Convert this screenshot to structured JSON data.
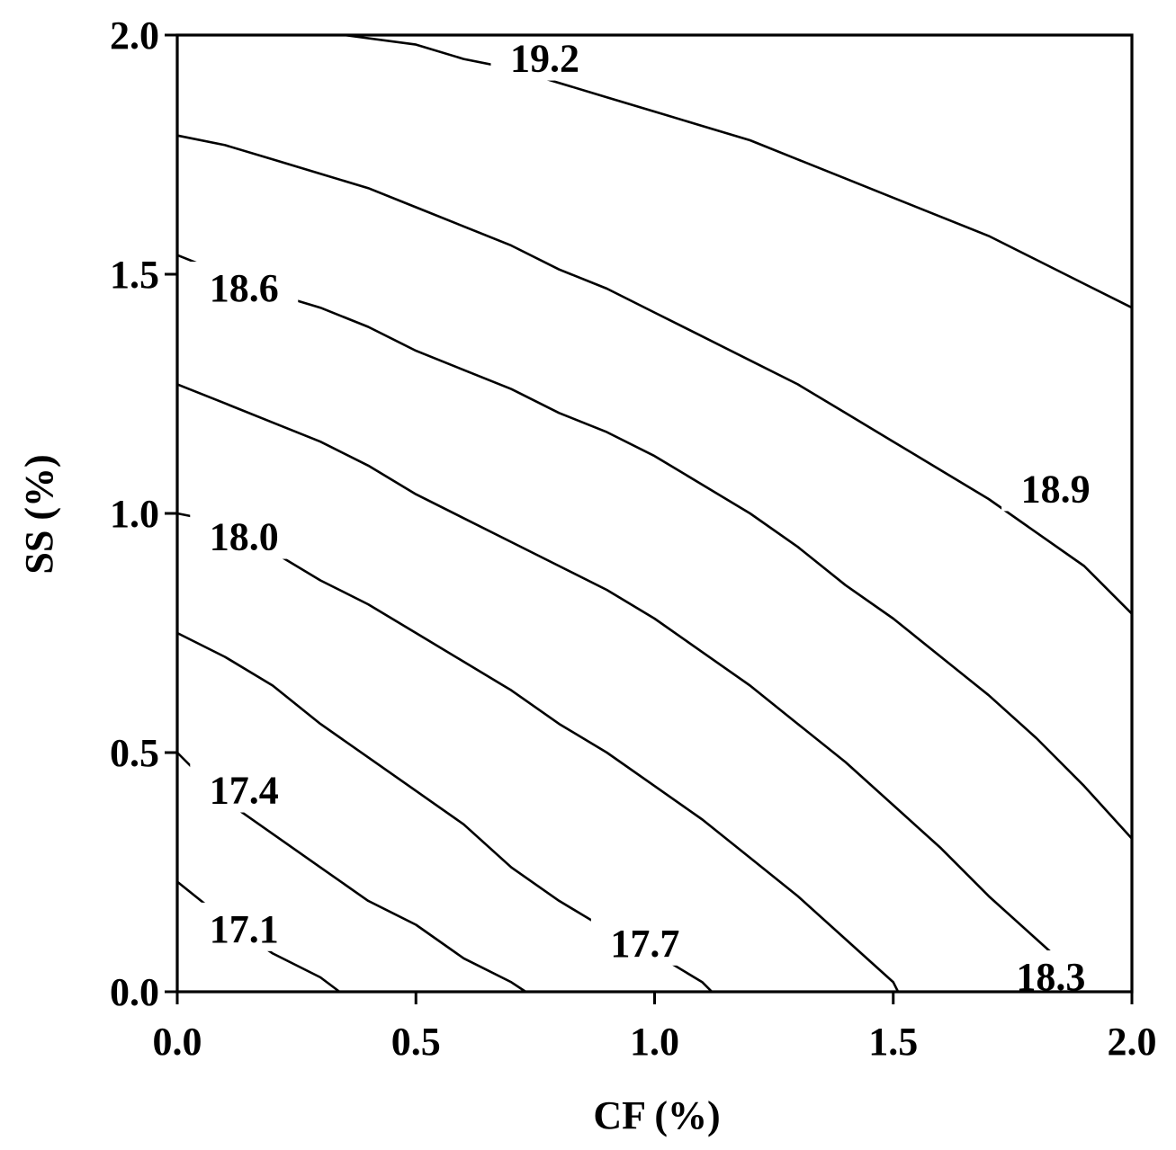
{
  "chart_data": {
    "type": "contour",
    "title": "",
    "xlabel": "CF (%)",
    "ylabel": "SS (%)",
    "xlim": [
      0.0,
      2.0
    ],
    "ylim": [
      0.0,
      2.0
    ],
    "xticks": [
      "0.0",
      "0.5",
      "1.0",
      "1.5",
      "2.0"
    ],
    "yticks": [
      "0.0",
      "0.5",
      "1.0",
      "1.5",
      "2.0"
    ],
    "grid": false,
    "contours": [
      {
        "level": "17.1",
        "points": [
          [
            0.0,
            0.23
          ],
          [
            0.1,
            0.15
          ],
          [
            0.2,
            0.08
          ],
          [
            0.3,
            0.03
          ],
          [
            0.34,
            0.0
          ]
        ]
      },
      {
        "level": "17.4",
        "points": [
          [
            0.0,
            0.5
          ],
          [
            0.1,
            0.4
          ],
          [
            0.2,
            0.33
          ],
          [
            0.3,
            0.26
          ],
          [
            0.4,
            0.19
          ],
          [
            0.5,
            0.14
          ],
          [
            0.6,
            0.07
          ],
          [
            0.7,
            0.02
          ],
          [
            0.73,
            0.0
          ]
        ]
      },
      {
        "level": "17.7",
        "points": [
          [
            0.0,
            0.75
          ],
          [
            0.1,
            0.7
          ],
          [
            0.2,
            0.64
          ],
          [
            0.3,
            0.56
          ],
          [
            0.4,
            0.49
          ],
          [
            0.5,
            0.42
          ],
          [
            0.6,
            0.35
          ],
          [
            0.7,
            0.26
          ],
          [
            0.8,
            0.19
          ],
          [
            0.9,
            0.13
          ],
          [
            1.0,
            0.08
          ],
          [
            1.1,
            0.02
          ],
          [
            1.12,
            0.0
          ]
        ]
      },
      {
        "level": "18.0",
        "points": [
          [
            0.0,
            1.0
          ],
          [
            0.1,
            0.98
          ],
          [
            0.2,
            0.92
          ],
          [
            0.3,
            0.86
          ],
          [
            0.4,
            0.81
          ],
          [
            0.5,
            0.75
          ],
          [
            0.6,
            0.69
          ],
          [
            0.7,
            0.63
          ],
          [
            0.8,
            0.56
          ],
          [
            0.9,
            0.5
          ],
          [
            1.0,
            0.43
          ],
          [
            1.1,
            0.36
          ],
          [
            1.2,
            0.28
          ],
          [
            1.3,
            0.2
          ],
          [
            1.4,
            0.11
          ],
          [
            1.5,
            0.02
          ],
          [
            1.51,
            0.0
          ]
        ]
      },
      {
        "level": "18.3",
        "points": [
          [
            0.0,
            1.27
          ],
          [
            0.1,
            1.23
          ],
          [
            0.2,
            1.19
          ],
          [
            0.3,
            1.15
          ],
          [
            0.4,
            1.1
          ],
          [
            0.5,
            1.04
          ],
          [
            0.6,
            0.99
          ],
          [
            0.7,
            0.94
          ],
          [
            0.8,
            0.89
          ],
          [
            0.9,
            0.84
          ],
          [
            1.0,
            0.78
          ],
          [
            1.1,
            0.71
          ],
          [
            1.2,
            0.64
          ],
          [
            1.3,
            0.56
          ],
          [
            1.4,
            0.48
          ],
          [
            1.5,
            0.39
          ],
          [
            1.6,
            0.3
          ],
          [
            1.7,
            0.2
          ],
          [
            1.8,
            0.11
          ],
          [
            1.9,
            0.02
          ],
          [
            1.92,
            0.0
          ]
        ]
      },
      {
        "level": "18.6",
        "points": [
          [
            0.0,
            1.54
          ],
          [
            0.1,
            1.5
          ],
          [
            0.2,
            1.46
          ],
          [
            0.3,
            1.43
          ],
          [
            0.4,
            1.39
          ],
          [
            0.5,
            1.34
          ],
          [
            0.6,
            1.3
          ],
          [
            0.7,
            1.26
          ],
          [
            0.8,
            1.21
          ],
          [
            0.9,
            1.17
          ],
          [
            1.0,
            1.12
          ],
          [
            1.1,
            1.06
          ],
          [
            1.2,
            1.0
          ],
          [
            1.3,
            0.93
          ],
          [
            1.4,
            0.85
          ],
          [
            1.5,
            0.78
          ],
          [
            1.6,
            0.7
          ],
          [
            1.7,
            0.62
          ],
          [
            1.8,
            0.53
          ],
          [
            1.9,
            0.43
          ],
          [
            2.0,
            0.32
          ]
        ]
      },
      {
        "level": "18.9",
        "points": [
          [
            0.0,
            1.79
          ],
          [
            0.1,
            1.77
          ],
          [
            0.2,
            1.74
          ],
          [
            0.3,
            1.71
          ],
          [
            0.4,
            1.68
          ],
          [
            0.5,
            1.64
          ],
          [
            0.6,
            1.6
          ],
          [
            0.7,
            1.56
          ],
          [
            0.8,
            1.51
          ],
          [
            0.9,
            1.47
          ],
          [
            1.0,
            1.42
          ],
          [
            1.1,
            1.37
          ],
          [
            1.2,
            1.32
          ],
          [
            1.3,
            1.27
          ],
          [
            1.4,
            1.21
          ],
          [
            1.5,
            1.15
          ],
          [
            1.6,
            1.09
          ],
          [
            1.7,
            1.03
          ],
          [
            1.8,
            0.96
          ],
          [
            1.9,
            0.89
          ],
          [
            2.0,
            0.79
          ]
        ]
      },
      {
        "level": "19.2",
        "points": [
          [
            0.35,
            2.0
          ],
          [
            0.5,
            1.98
          ],
          [
            0.6,
            1.95
          ],
          [
            0.7,
            1.93
          ],
          [
            0.8,
            1.9
          ],
          [
            0.9,
            1.87
          ],
          [
            1.0,
            1.84
          ],
          [
            1.1,
            1.81
          ],
          [
            1.2,
            1.78
          ],
          [
            1.3,
            1.74
          ],
          [
            1.4,
            1.7
          ],
          [
            1.5,
            1.66
          ],
          [
            1.6,
            1.62
          ],
          [
            1.7,
            1.58
          ],
          [
            1.8,
            1.53
          ],
          [
            1.9,
            1.48
          ],
          [
            2.0,
            1.43
          ]
        ]
      }
    ],
    "labels": [
      {
        "text": "19.2",
        "x": 0.77,
        "y": 1.95
      },
      {
        "text": "18.6",
        "x": 0.14,
        "y": 1.47
      },
      {
        "text": "18.9",
        "x": 1.84,
        "y": 1.05
      },
      {
        "text": "18.0",
        "x": 0.14,
        "y": 0.95
      },
      {
        "text": "17.4",
        "x": 0.14,
        "y": 0.42
      },
      {
        "text": "17.1",
        "x": 0.14,
        "y": 0.13
      },
      {
        "text": "17.7",
        "x": 0.98,
        "y": 0.1
      },
      {
        "text": "18.3",
        "x": 1.83,
        "y": 0.03
      }
    ]
  }
}
